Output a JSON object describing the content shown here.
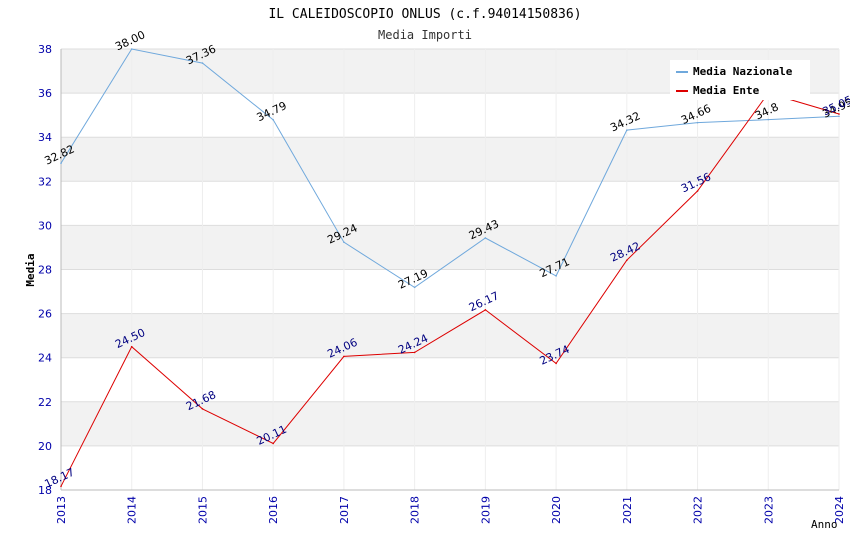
{
  "chart_data": {
    "type": "line",
    "title": "IL CALEIDOSCOPIO ONLUS (c.f.94014150836)",
    "subtitle": "Media Importi",
    "xlabel": "Anno",
    "ylabel": "Media",
    "ylim": [
      18,
      38
    ],
    "yticks": [
      "18",
      "20",
      "22",
      "24",
      "26",
      "28",
      "30",
      "32",
      "34",
      "36",
      "38"
    ],
    "categories": [
      "2013",
      "2014",
      "2015",
      "2016",
      "2017",
      "2018",
      "2019",
      "2020",
      "2021",
      "2022",
      "2023",
      "2024"
    ],
    "grid": true,
    "legend_position": "top-right",
    "series": [
      {
        "name": "Media Nazionale",
        "color": "#6fa8dc",
        "label_color": "#000000",
        "values": [
          32.82,
          38.0,
          37.36,
          34.79,
          29.24,
          27.19,
          29.43,
          27.71,
          34.32,
          34.66,
          34.8,
          34.95
        ],
        "labels": [
          "32.82",
          "38.00",
          "37.36",
          "34.79",
          "29.24",
          "27.19",
          "29.43",
          "27.71",
          "34.32",
          "34.66",
          "34.8",
          "34.95"
        ]
      },
      {
        "name": "Media Ente",
        "color": "#dd0000",
        "label_color": "#000080",
        "values": [
          18.17,
          24.5,
          21.68,
          20.11,
          24.06,
          24.24,
          26.17,
          23.74,
          28.42,
          31.56,
          36.0,
          35.05
        ],
        "labels": [
          "18.17",
          "24.50",
          "21.68",
          "20.11",
          "24.06",
          "24.24",
          "26.17",
          "23.74",
          "28.42",
          "31.56",
          "",
          "35.05"
        ]
      }
    ]
  }
}
